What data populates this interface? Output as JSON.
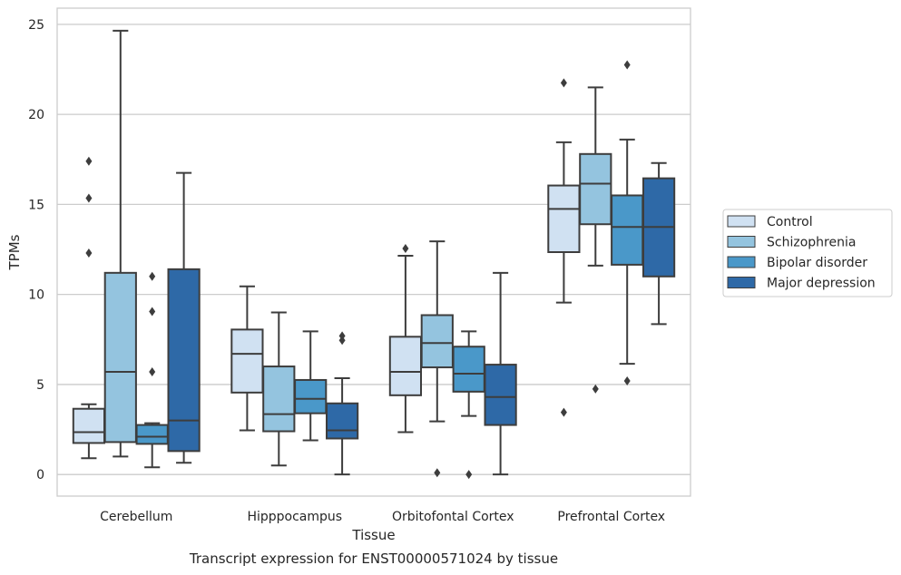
{
  "chart_data": {
    "type": "box",
    "caption": "Transcript expression for ENST00000571024 by tissue",
    "xlabel": "Tissue",
    "ylabel": "TPMs",
    "ylim": [
      -1.2,
      25.9
    ],
    "yticks": [
      0,
      5,
      10,
      15,
      20,
      25
    ],
    "grid": "horizontal",
    "legend_position": "right",
    "categories": [
      "Cerebellum",
      "Hipppocampus",
      "Orbitofontal Cortex",
      "Prefrontal Cortex"
    ],
    "series": [
      {
        "name": "Control",
        "color": "#d0e1f2",
        "boxes": [
          {
            "whislo": 0.9,
            "q1": 1.75,
            "med": 2.35,
            "q3": 3.65,
            "whishi": 3.9,
            "fliers": [
              12.3,
              15.35,
              17.4
            ]
          },
          {
            "whislo": 2.45,
            "q1": 4.55,
            "med": 6.7,
            "q3": 8.05,
            "whishi": 10.45,
            "fliers": []
          },
          {
            "whislo": 2.35,
            "q1": 4.4,
            "med": 5.7,
            "q3": 7.65,
            "whishi": 12.15,
            "fliers": [
              12.55
            ]
          },
          {
            "whislo": 9.55,
            "q1": 12.35,
            "med": 14.75,
            "q3": 16.05,
            "whishi": 18.45,
            "fliers": [
              3.45,
              21.75
            ]
          }
        ]
      },
      {
        "name": "Schizophrenia",
        "color": "#94c4df",
        "boxes": [
          {
            "whislo": 1.0,
            "q1": 1.8,
            "med": 5.7,
            "q3": 11.2,
            "whishi": 24.65,
            "fliers": []
          },
          {
            "whislo": 0.5,
            "q1": 2.4,
            "med": 3.35,
            "q3": 6.0,
            "whishi": 9.0,
            "fliers": []
          },
          {
            "whislo": 2.95,
            "q1": 5.95,
            "med": 7.3,
            "q3": 8.85,
            "whishi": 12.95,
            "fliers": [
              0.1
            ]
          },
          {
            "whislo": 11.6,
            "q1": 13.9,
            "med": 16.15,
            "q3": 17.8,
            "whishi": 21.5,
            "fliers": [
              4.75
            ]
          }
        ]
      },
      {
        "name": "Bipolar disorder",
        "color": "#4a98c9",
        "boxes": [
          {
            "whislo": 0.4,
            "q1": 1.7,
            "med": 2.1,
            "q3": 2.75,
            "whishi": 2.85,
            "fliers": [
              5.7,
              9.05,
              11.0
            ]
          },
          {
            "whislo": 1.9,
            "q1": 3.4,
            "med": 4.2,
            "q3": 5.25,
            "whishi": 7.95,
            "fliers": []
          },
          {
            "whislo": 3.25,
            "q1": 4.6,
            "med": 5.6,
            "q3": 7.1,
            "whishi": 7.95,
            "fliers": [
              0.0
            ]
          },
          {
            "whislo": 6.15,
            "q1": 11.65,
            "med": 13.75,
            "q3": 15.5,
            "whishi": 18.6,
            "fliers": [
              5.2,
              22.75
            ]
          }
        ]
      },
      {
        "name": "Major depression",
        "color": "#2e69a7",
        "boxes": [
          {
            "whislo": 0.65,
            "q1": 1.3,
            "med": 3.0,
            "q3": 11.4,
            "whishi": 16.75,
            "fliers": []
          },
          {
            "whislo": 0.0,
            "q1": 2.0,
            "med": 2.45,
            "q3": 3.95,
            "whishi": 5.35,
            "fliers": [
              7.45,
              7.7
            ]
          },
          {
            "whislo": 0.0,
            "q1": 2.75,
            "med": 4.3,
            "q3": 6.1,
            "whishi": 11.2,
            "fliers": []
          },
          {
            "whislo": 8.35,
            "q1": 11.0,
            "med": 13.75,
            "q3": 16.45,
            "whishi": 17.3,
            "fliers": []
          }
        ]
      }
    ]
  }
}
